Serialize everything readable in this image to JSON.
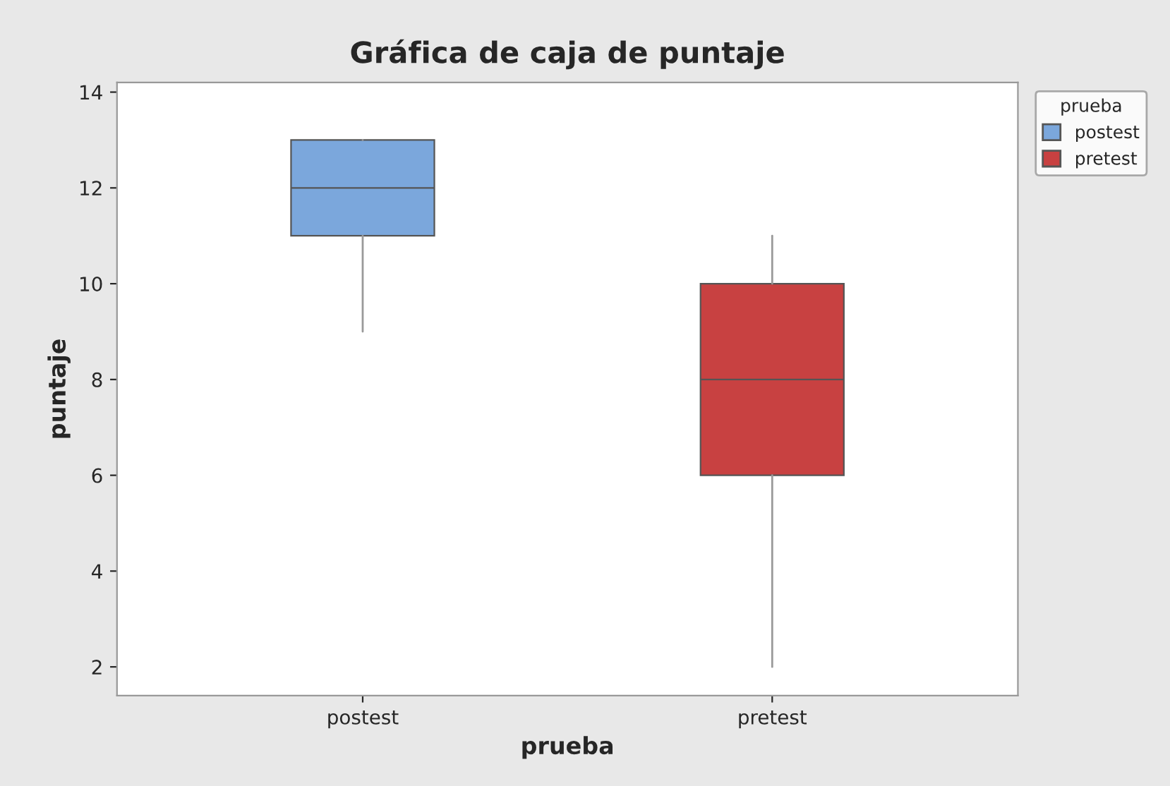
{
  "chart_data": {
    "type": "box",
    "title": "Gráfica de caja de puntaje",
    "xlabel": "prueba",
    "ylabel": "puntaje",
    "legend_title": "prueba",
    "legend": "top right",
    "categories": [
      "postest",
      "pretest"
    ],
    "series": [
      {
        "name": "postest",
        "color": "#7ba7dc",
        "boxes": [
          {
            "low": 9,
            "q1": 11,
            "median": 12,
            "q3": 13,
            "high": 13
          },
          null
        ]
      },
      {
        "name": "pretest",
        "color": "#c84141",
        "boxes": [
          null,
          {
            "low": 2,
            "q1": 6,
            "median": 8,
            "q3": 10,
            "high": 11
          }
        ]
      }
    ],
    "ylim": [
      1.4,
      14.2
    ],
    "yticks": [
      2,
      4,
      6,
      8,
      10,
      12,
      14
    ],
    "grid": false
  }
}
